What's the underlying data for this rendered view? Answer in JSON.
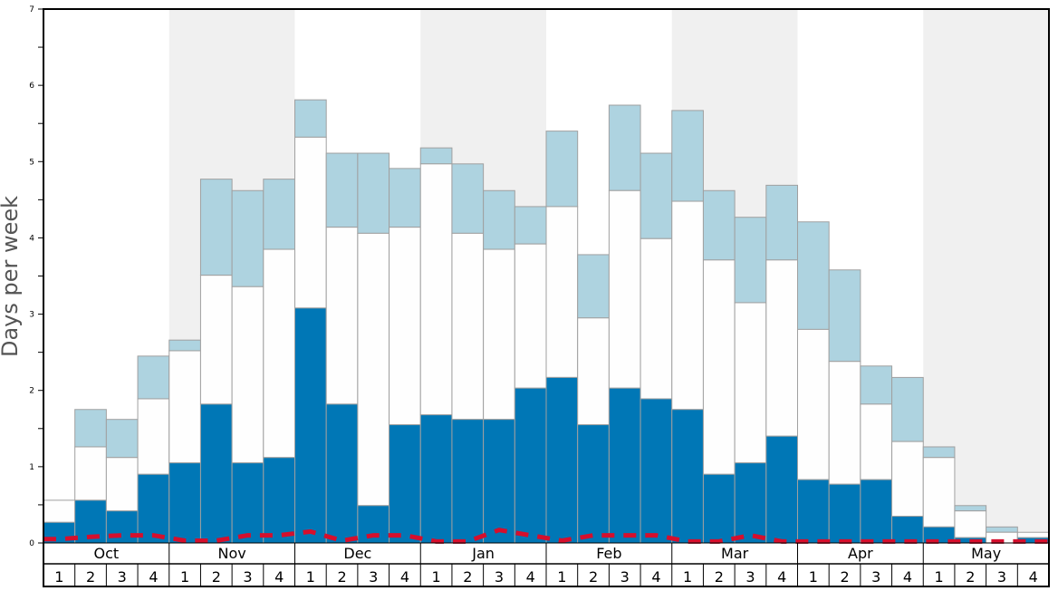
{
  "chart_data": {
    "type": "bar",
    "stacked": true,
    "title": "",
    "xlabel": "",
    "ylabel": "Days per week",
    "ylim": [
      0,
      7
    ],
    "yticks": [
      "0",
      "1",
      "2",
      "3",
      "4",
      "5",
      "6",
      "7"
    ],
    "months": [
      "Oct",
      "Nov",
      "Dec",
      "Jan",
      "Feb",
      "Mar",
      "Apr",
      "May"
    ],
    "week_labels": [
      "1",
      "2",
      "3",
      "4"
    ],
    "shaded_months": [
      "Nov",
      "Jan",
      "Mar",
      "May"
    ],
    "colors": {
      "dark": "#0077b6",
      "white": "#fefefe",
      "light": "#aed3e0",
      "line": "#d50f2d",
      "shade": "#f0f0f0"
    },
    "series": [
      {
        "name": "dark",
        "cumulative_top": [
          0.27,
          0.56,
          0.42,
          0.9,
          1.05,
          1.82,
          1.05,
          1.12,
          3.08,
          1.82,
          0.49,
          1.55,
          1.68,
          1.62,
          1.62,
          2.03,
          2.17,
          1.55,
          2.03,
          1.89,
          1.75,
          0.9,
          1.05,
          1.4,
          0.83,
          0.77,
          0.83,
          0.35,
          0.21,
          0.07,
          0.0,
          0.07
        ]
      },
      {
        "name": "white",
        "cumulative_top": [
          0.56,
          1.26,
          1.12,
          1.89,
          2.52,
          3.51,
          3.36,
          3.85,
          5.32,
          4.14,
          4.06,
          4.14,
          4.97,
          4.06,
          3.85,
          3.92,
          4.41,
          2.95,
          4.62,
          3.99,
          4.48,
          3.71,
          3.15,
          3.71,
          2.8,
          2.38,
          1.82,
          1.33,
          1.12,
          0.42,
          0.14,
          0.14
        ]
      },
      {
        "name": "light",
        "cumulative_top": [
          0.56,
          1.75,
          1.62,
          2.45,
          2.66,
          4.77,
          4.62,
          4.77,
          5.81,
          5.11,
          5.11,
          4.91,
          5.18,
          4.97,
          4.62,
          4.41,
          5.4,
          3.78,
          5.74,
          5.11,
          5.67,
          4.62,
          4.27,
          4.69,
          4.21,
          3.58,
          2.32,
          2.17,
          1.26,
          0.49,
          0.21,
          0.14
        ]
      },
      {
        "name": "dashed-line",
        "values": [
          0.05,
          0.08,
          0.1,
          0.1,
          0.03,
          0.03,
          0.1,
          0.1,
          0.15,
          0.03,
          0.1,
          0.1,
          0.02,
          0.02,
          0.17,
          0.1,
          0.03,
          0.1,
          0.1,
          0.1,
          0.02,
          0.02,
          0.1,
          0.02,
          0.02,
          0.02,
          0.02,
          0.02,
          0.02,
          0.02,
          0.02,
          0.02
        ]
      }
    ]
  }
}
